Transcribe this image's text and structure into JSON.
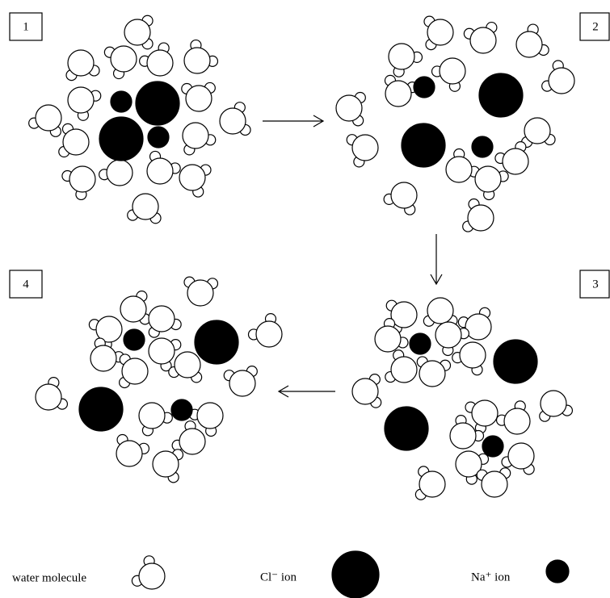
{
  "panels": [
    {
      "label": "1"
    },
    {
      "label": "2"
    },
    {
      "label": "3"
    },
    {
      "label": "4"
    }
  ],
  "legend": {
    "water": "water molecule",
    "chloride": "Cl⁻ ion",
    "sodium": "Na⁺ ion"
  }
}
